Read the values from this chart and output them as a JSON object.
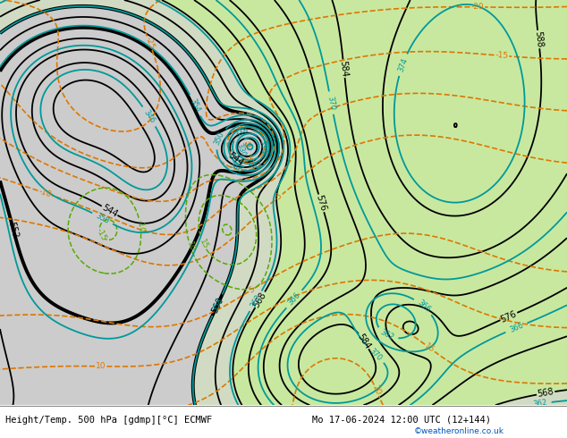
{
  "title_left": "Height/Temp. 500 hPa [gdmp][°C] ECMWF",
  "title_right": "Mo 17-06-2024 12:00 UTC (12+144)",
  "watermark": "©weatheronline.co.uk",
  "figsize": [
    6.34,
    4.9
  ],
  "dpi": 100,
  "xlim": [
    -25,
    45
  ],
  "ylim": [
    28,
    75
  ],
  "z500_color": "#000000",
  "temp_color": "#dd7700",
  "regen_color": "#55aa00",
  "z850_color": "#009999",
  "land_green": "#c8e8a0",
  "land_gray": "#d0d0d0",
  "sea_gray": "#c8c8c8",
  "bottom_bg": "#ffffff",
  "watermark_color": "#0055bb",
  "title_fontsize": 7.5
}
